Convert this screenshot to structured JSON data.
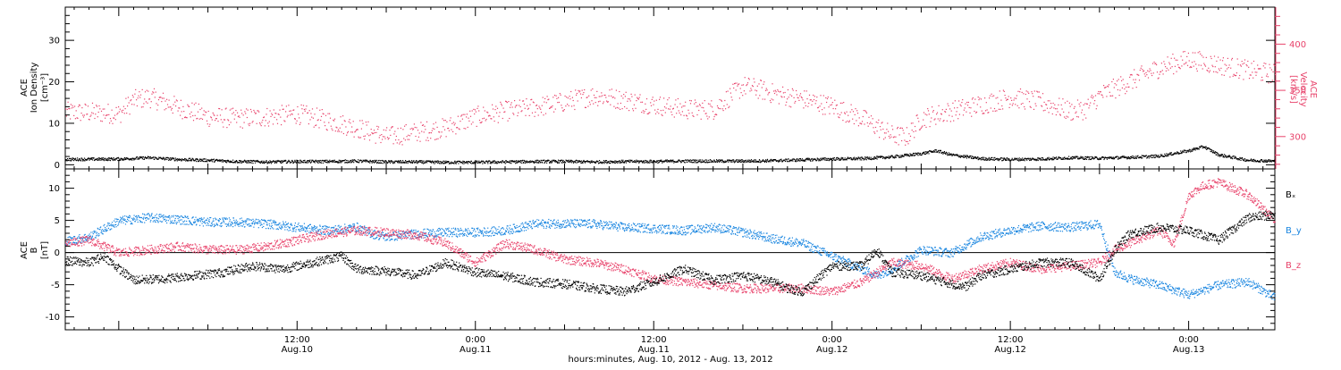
{
  "colors": {
    "black": "#000000",
    "pink": "#e8436b",
    "blue": "#1a86e0"
  },
  "chart_data": [
    {
      "type": "scatter",
      "panel": "top",
      "x_unit": "hours since Aug. 10, 2012 00:00",
      "xlim": [
        -3.6,
        77.8
      ],
      "ylabel_left": [
        "ACE",
        "Ion Density",
        "[cm⁻³]"
      ],
      "ylabel_right": [
        "ACE",
        "Velocity",
        "[km/s]"
      ],
      "ylim_left": [
        -1,
        38
      ],
      "ylim_right": [
        265,
        440
      ],
      "yticks_left": [
        0,
        10,
        20,
        30
      ],
      "yticks_right": [
        300,
        350,
        400
      ],
      "grid": false,
      "series": [
        {
          "axis": "left",
          "color": "#000000",
          "points": [
            [
              -3.6,
              1.4
            ],
            [
              0,
              1.5
            ],
            [
              2,
              1.8
            ],
            [
              4,
              1.4
            ],
            [
              6,
              1.2
            ],
            [
              8,
              0.9
            ],
            [
              10,
              0.8
            ],
            [
              12,
              0.9
            ],
            [
              14,
              0.9
            ],
            [
              16,
              1.0
            ],
            [
              18,
              0.8
            ],
            [
              20,
              0.8
            ],
            [
              22,
              0.7
            ],
            [
              24,
              0.7
            ],
            [
              26,
              0.8
            ],
            [
              28,
              0.9
            ],
            [
              30,
              0.9
            ],
            [
              32,
              0.8
            ],
            [
              34,
              0.9
            ],
            [
              36,
              0.9
            ],
            [
              38,
              1.0
            ],
            [
              40,
              1.0
            ],
            [
              42,
              1.0
            ],
            [
              44,
              1.1
            ],
            [
              46,
              1.3
            ],
            [
              48,
              1.5
            ],
            [
              50,
              1.6
            ],
            [
              52,
              2.0
            ],
            [
              54,
              2.8
            ],
            [
              55,
              3.5
            ],
            [
              56,
              2.5
            ],
            [
              58,
              1.6
            ],
            [
              60,
              1.4
            ],
            [
              62,
              1.5
            ],
            [
              64,
              1.8
            ],
            [
              66,
              1.7
            ],
            [
              68,
              1.9
            ],
            [
              70,
              2.2
            ],
            [
              72,
              3.5
            ],
            [
              73,
              4.5
            ],
            [
              74,
              2.5
            ],
            [
              76,
              1.2
            ],
            [
              77.8,
              1.0
            ]
          ]
        },
        {
          "axis": "right",
          "color": "#e8436b",
          "points": [
            [
              -3.6,
              327
            ],
            [
              -1,
              326
            ],
            [
              0,
              325
            ],
            [
              1,
              340
            ],
            [
              2,
              343
            ],
            [
              3,
              338
            ],
            [
              4,
              332
            ],
            [
              6,
              322
            ],
            [
              8,
              320
            ],
            [
              10,
              322
            ],
            [
              12,
              325
            ],
            [
              14,
              318
            ],
            [
              16,
              310
            ],
            [
              18,
              300
            ],
            [
              20,
              305
            ],
            [
              22,
              310
            ],
            [
              24,
              322
            ],
            [
              26,
              328
            ],
            [
              28,
              332
            ],
            [
              30,
              338
            ],
            [
              32,
              345
            ],
            [
              34,
              340
            ],
            [
              36,
              335
            ],
            [
              38,
              330
            ],
            [
              40,
              330
            ],
            [
              42,
              355
            ],
            [
              43,
              352
            ],
            [
              44,
              347
            ],
            [
              46,
              341
            ],
            [
              48,
              333
            ],
            [
              50,
              320
            ],
            [
              52,
              302
            ],
            [
              53,
              300
            ],
            [
              54,
              320
            ],
            [
              56,
              328
            ],
            [
              58,
              335
            ],
            [
              60,
              343
            ],
            [
              62,
              338
            ],
            [
              64,
              328
            ],
            [
              65,
              330
            ],
            [
              66,
              345
            ],
            [
              68,
              360
            ],
            [
              70,
              375
            ],
            [
              72,
              384
            ],
            [
              74,
              378
            ],
            [
              76,
              372
            ],
            [
              77.8,
              368
            ]
          ]
        }
      ]
    },
    {
      "type": "scatter",
      "panel": "bottom",
      "x_unit": "hours since Aug. 10, 2012 00:00",
      "xlim": [
        -3.6,
        77.8
      ],
      "ylabel": [
        "ACE",
        "B",
        "[nT]"
      ],
      "ylim": [
        -12,
        13
      ],
      "yticks": [
        -10,
        -5,
        0,
        5,
        10
      ],
      "zero_line": true,
      "grid": false,
      "series": [
        {
          "name": "Bₓ",
          "color": "#000000",
          "points": [
            [
              -3.6,
              -1.2
            ],
            [
              -2,
              -1.5
            ],
            [
              -1,
              -0.5
            ],
            [
              0,
              -2.5
            ],
            [
              1,
              -4.2
            ],
            [
              3,
              -4.0
            ],
            [
              5,
              -3.5
            ],
            [
              7,
              -3.0
            ],
            [
              9,
              -2.0
            ],
            [
              11,
              -2.5
            ],
            [
              13,
              -1.5
            ],
            [
              15,
              -0.5
            ],
            [
              16,
              -2.5
            ],
            [
              18,
              -2.8
            ],
            [
              20,
              -3.5
            ],
            [
              22,
              -1.5
            ],
            [
              24,
              -3.0
            ],
            [
              26,
              -3.6
            ],
            [
              28,
              -4.5
            ],
            [
              30,
              -4.8
            ],
            [
              32,
              -5.5
            ],
            [
              34,
              -6.0
            ],
            [
              36,
              -4.5
            ],
            [
              38,
              -2.5
            ],
            [
              40,
              -4.2
            ],
            [
              42,
              -3.5
            ],
            [
              44,
              -4.5
            ],
            [
              45,
              -5.5
            ],
            [
              46,
              -6.0
            ],
            [
              48,
              -2.0
            ],
            [
              50,
              -2.0
            ],
            [
              51,
              0.5
            ],
            [
              52,
              -3.0
            ],
            [
              54,
              -3.5
            ],
            [
              56,
              -4.8
            ],
            [
              57,
              -5.2
            ],
            [
              58,
              -3.5
            ],
            [
              60,
              -2.5
            ],
            [
              62,
              -1.5
            ],
            [
              64,
              -1.5
            ],
            [
              66,
              -4.0
            ],
            [
              67,
              0.5
            ],
            [
              68,
              3.0
            ],
            [
              70,
              4.0
            ],
            [
              72,
              3.5
            ],
            [
              74,
              2.0
            ],
            [
              76,
              5.5
            ],
            [
              77.8,
              6.0
            ]
          ]
        },
        {
          "name": "B_y",
          "color": "#1a86e0",
          "points": [
            [
              -3.6,
              1.8
            ],
            [
              -2,
              2.5
            ],
            [
              0,
              5.0
            ],
            [
              2,
              5.5
            ],
            [
              4,
              5.2
            ],
            [
              6,
              4.8
            ],
            [
              8,
              4.8
            ],
            [
              10,
              4.5
            ],
            [
              12,
              4.0
            ],
            [
              14,
              3.5
            ],
            [
              16,
              4.0
            ],
            [
              17,
              3.0
            ],
            [
              18,
              2.5
            ],
            [
              20,
              3.0
            ],
            [
              22,
              3.2
            ],
            [
              24,
              3.2
            ],
            [
              26,
              3.5
            ],
            [
              28,
              4.5
            ],
            [
              30,
              4.6
            ],
            [
              32,
              4.5
            ],
            [
              34,
              4.0
            ],
            [
              36,
              3.8
            ],
            [
              38,
              3.5
            ],
            [
              40,
              4.0
            ],
            [
              42,
              3.2
            ],
            [
              44,
              2.2
            ],
            [
              46,
              1.5
            ],
            [
              48,
              -0.5
            ],
            [
              50,
              -2.5
            ],
            [
              51,
              -3.5
            ],
            [
              52,
              -2.5
            ],
            [
              54,
              0.5
            ],
            [
              56,
              0.0
            ],
            [
              58,
              2.5
            ],
            [
              60,
              3.5
            ],
            [
              62,
              4.2
            ],
            [
              64,
              4.0
            ],
            [
              66,
              4.5
            ],
            [
              67,
              -3.0
            ],
            [
              68,
              -4.0
            ],
            [
              70,
              -5.0
            ],
            [
              72,
              -6.5
            ],
            [
              74,
              -5.0
            ],
            [
              76,
              -4.5
            ],
            [
              77.8,
              -7.0
            ]
          ]
        },
        {
          "name": "B_z",
          "color": "#e8436b",
          "points": [
            [
              -3.6,
              1.5
            ],
            [
              -2,
              2.0
            ],
            [
              0,
              0.0
            ],
            [
              2,
              0.5
            ],
            [
              4,
              1.0
            ],
            [
              6,
              0.5
            ],
            [
              8,
              0.5
            ],
            [
              10,
              1.0
            ],
            [
              12,
              2.0
            ],
            [
              14,
              3.0
            ],
            [
              16,
              3.5
            ],
            [
              18,
              3.2
            ],
            [
              20,
              2.8
            ],
            [
              22,
              1.5
            ],
            [
              24,
              -1.5
            ],
            [
              26,
              1.5
            ],
            [
              28,
              0.5
            ],
            [
              30,
              -1.0
            ],
            [
              32,
              -1.5
            ],
            [
              34,
              -2.5
            ],
            [
              36,
              -4.0
            ],
            [
              38,
              -4.5
            ],
            [
              40,
              -5.0
            ],
            [
              42,
              -5.5
            ],
            [
              44,
              -5.5
            ],
            [
              46,
              -5.5
            ],
            [
              48,
              -6.0
            ],
            [
              50,
              -4.5
            ],
            [
              52,
              -1.5
            ],
            [
              54,
              -2.0
            ],
            [
              56,
              -4.0
            ],
            [
              58,
              -2.5
            ],
            [
              60,
              -1.5
            ],
            [
              62,
              -2.5
            ],
            [
              64,
              -2.0
            ],
            [
              66,
              -1.5
            ],
            [
              67,
              0.5
            ],
            [
              68,
              1.5
            ],
            [
              70,
              3.5
            ],
            [
              71,
              1.5
            ],
            [
              72,
              9.0
            ],
            [
              73,
              10.5
            ],
            [
              74,
              11.0
            ],
            [
              75,
              10.0
            ],
            [
              76,
              9.0
            ],
            [
              77.8,
              5.0
            ]
          ]
        }
      ]
    }
  ],
  "top_panel": {
    "ylabel_left": [
      "ACE",
      "Ion Density",
      "[cm⁻³]"
    ],
    "ylabel_right": [
      "ACE",
      "Velocity",
      "[km/s]"
    ],
    "yticks_left": [
      "0",
      "10",
      "20",
      "30"
    ],
    "yticks_right": [
      "300",
      "350",
      "400"
    ]
  },
  "bottom_panel": {
    "ylabel": [
      "ACE",
      "B",
      "[nT]"
    ],
    "yticks": [
      "-10",
      "-5",
      "0",
      "5",
      "10"
    ],
    "legend": [
      "Bₓ",
      "B_y",
      "B_z"
    ]
  },
  "x_axis": {
    "ticks": [
      {
        "time": "12:00",
        "date": "Aug.10"
      },
      {
        "time": "0:00",
        "date": "Aug.11"
      },
      {
        "time": "12:00",
        "date": "Aug.11"
      },
      {
        "time": "0:00",
        "date": "Aug.12"
      },
      {
        "time": "12:00",
        "date": "Aug.12"
      },
      {
        "time": "0:00",
        "date": "Aug.13"
      }
    ],
    "tick_hours": [
      12,
      24,
      36,
      48,
      60,
      72
    ],
    "label": "hours:minutes, Aug. 10, 2012 - Aug. 13, 2012"
  }
}
